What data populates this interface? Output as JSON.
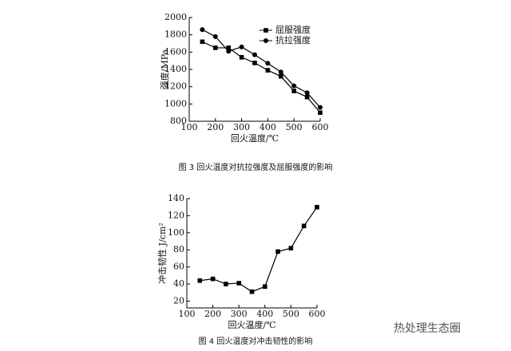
{
  "chart_data": [
    {
      "type": "line",
      "x_label": "回火温度/℃",
      "y_label": "强度/MPa",
      "caption": "图 3 回火温度对抗拉强度及屈服强度的影响",
      "x": [
        150,
        200,
        250,
        300,
        350,
        400,
        450,
        500,
        550,
        600
      ],
      "series": [
        {
          "name": "屈服强度",
          "color": "#000000",
          "marker": "square",
          "values": [
            1720,
            1650,
            1650,
            1540,
            1475,
            1390,
            1320,
            1150,
            1080,
            900
          ]
        },
        {
          "name": "抗拉强度",
          "color": "#000000",
          "marker": "circle",
          "values": [
            1860,
            1780,
            1610,
            1660,
            1570,
            1470,
            1370,
            1210,
            1130,
            960
          ]
        }
      ],
      "xlim": [
        100,
        600
      ],
      "xticks": [
        100,
        200,
        300,
        400,
        500,
        600
      ],
      "ylim": [
        800,
        2000
      ],
      "yticks": [
        800,
        1000,
        1200,
        1400,
        1600,
        1800,
        2000
      ],
      "legend": "upper right"
    },
    {
      "type": "line",
      "x_label": "回火温度/℃",
      "y_label": "冲击韧性 J/cm²",
      "caption": "图 4 回火温度对冲击韧性的影响",
      "x": [
        150,
        200,
        250,
        300,
        350,
        400,
        450,
        500,
        550,
        600
      ],
      "series": [
        {
          "name": "冲击韧性",
          "color": "#000000",
          "marker": "square",
          "values": [
            44,
            46,
            40,
            41,
            31,
            37,
            78,
            82,
            108,
            130
          ]
        }
      ],
      "xlim": [
        100,
        600
      ],
      "xticks": [
        100,
        200,
        300,
        400,
        500,
        600
      ],
      "ylim": [
        12,
        140
      ],
      "yticks": [
        20,
        40,
        60,
        80,
        100,
        120,
        140
      ]
    }
  ],
  "watermark": "热处理生态圈"
}
